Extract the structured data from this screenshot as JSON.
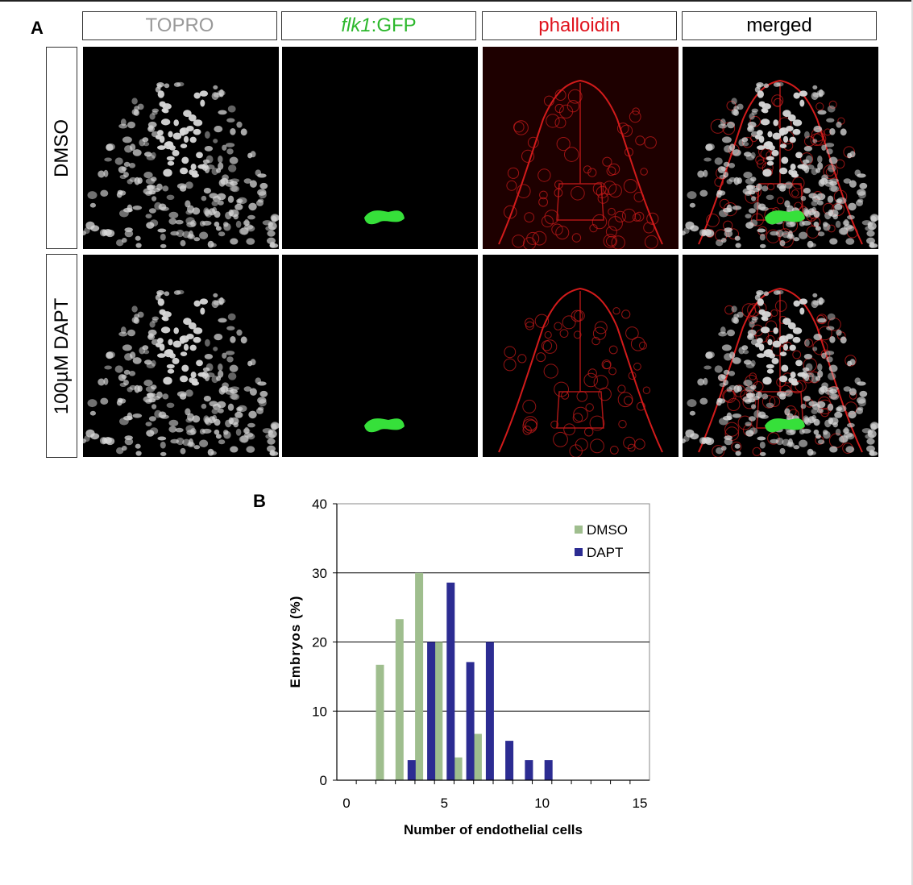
{
  "figure": {
    "panel_a_label": "A",
    "panel_b_label": "B",
    "columns": [
      {
        "label": "TOPRO",
        "color": "#9a9a9a"
      },
      {
        "label_italic": "flk1",
        "label_rest": ":GFP",
        "color": "#2db82d"
      },
      {
        "label": "phalloidin",
        "color": "#e0141e"
      },
      {
        "label": "merged",
        "color": "#000000"
      }
    ],
    "rows": [
      {
        "label": "DMSO"
      },
      {
        "label": "100µM DAPT"
      }
    ],
    "image_colors": {
      "nuclei": "#d8d8d8",
      "gfp": "#36e03a",
      "actin": "#d21b1b",
      "background": "#000000"
    }
  },
  "chart_data": {
    "type": "bar",
    "xlabel": "Number of endothelial cells",
    "ylabel": "Embryos (%)",
    "xlim": [
      0,
      15
    ],
    "ylim": [
      0,
      40
    ],
    "x_ticks": [
      0,
      5,
      10,
      15
    ],
    "y_ticks": [
      0,
      10,
      20,
      30,
      40
    ],
    "grid": "horizontal",
    "legend_position": "top-right",
    "series": [
      {
        "name": "DMSO",
        "color": "#9fbe8e",
        "x": [
          2,
          3,
          4,
          5,
          6,
          7
        ],
        "values": [
          16.7,
          23.3,
          30.0,
          20.0,
          3.3,
          6.7
        ]
      },
      {
        "name": "DAPT",
        "color": "#2c2c92",
        "x": [
          3,
          4,
          5,
          6,
          7,
          8,
          9,
          10
        ],
        "values": [
          2.9,
          20.0,
          28.6,
          17.1,
          20.0,
          5.7,
          2.9,
          2.9
        ]
      }
    ]
  }
}
